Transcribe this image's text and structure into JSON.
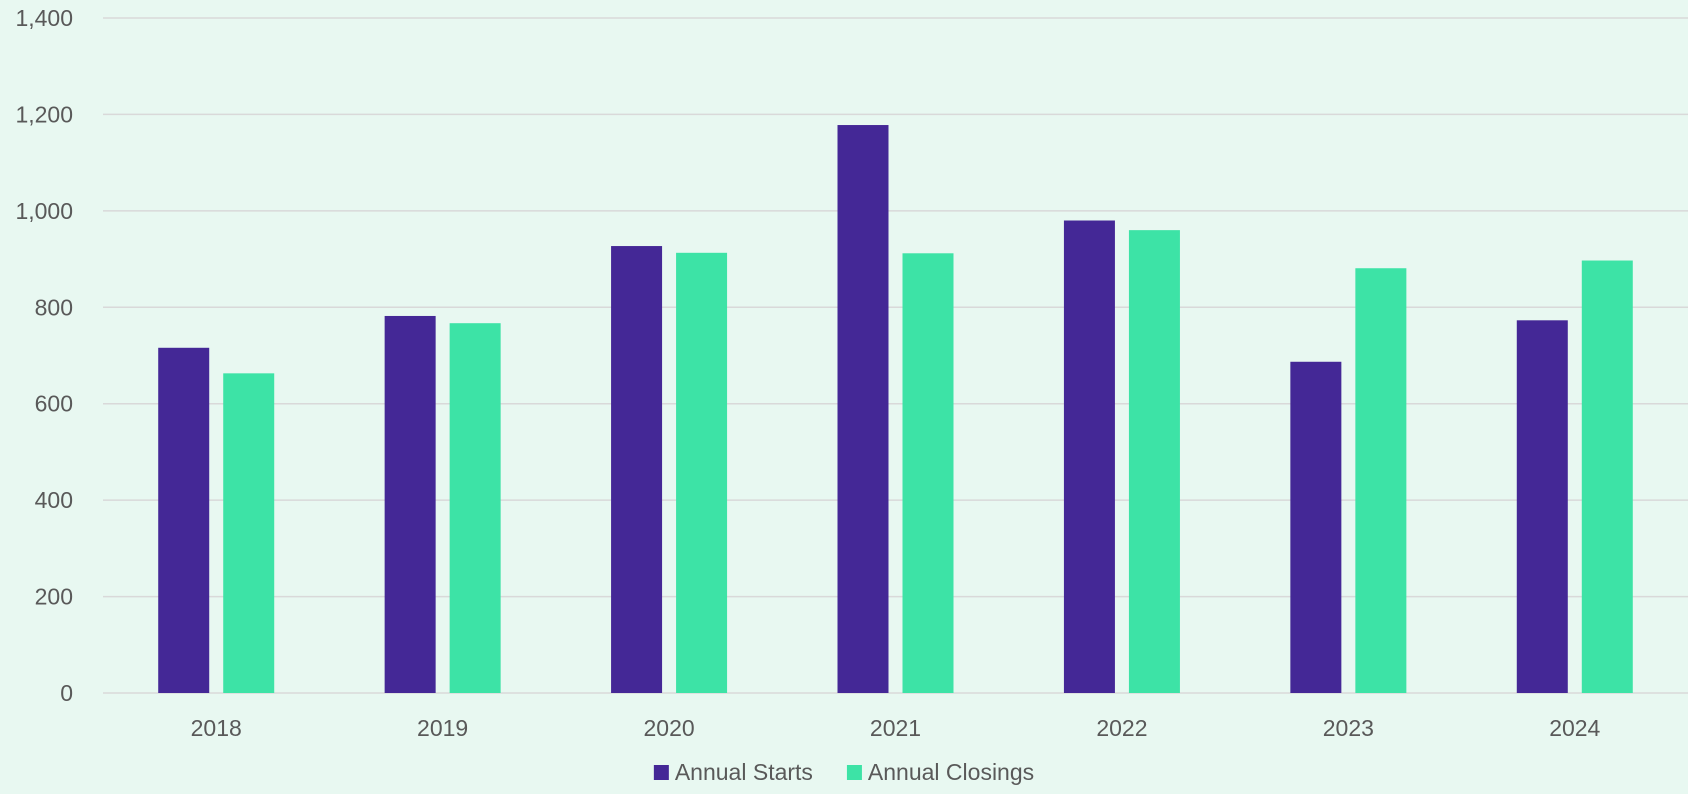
{
  "chart_data": {
    "type": "bar",
    "title": "",
    "xlabel": "",
    "ylabel": "",
    "categories": [
      "2018",
      "2019",
      "2020",
      "2021",
      "2022",
      "2023",
      "2024"
    ],
    "series": [
      {
        "name": "Annual Starts",
        "color": "#442896",
        "values": [
          716,
          782,
          927,
          1178,
          980,
          687,
          773
        ]
      },
      {
        "name": "Annual Closings",
        "color": "#3DE3A6",
        "values": [
          663,
          767,
          913,
          912,
          960,
          881,
          897
        ]
      }
    ],
    "ylim": [
      0,
      1400
    ],
    "yticks": [
      0,
      200,
      400,
      600,
      800,
      1000,
      1200,
      1400
    ],
    "ytick_labels": [
      "0",
      "200",
      "400",
      "600",
      "800",
      "1,000",
      "1,200",
      "1,400"
    ],
    "grid": true,
    "legend_position": "bottom-center",
    "background_color": "#E8F8F1",
    "grid_color": "#D9D9D9",
    "text_color": "#595959"
  }
}
